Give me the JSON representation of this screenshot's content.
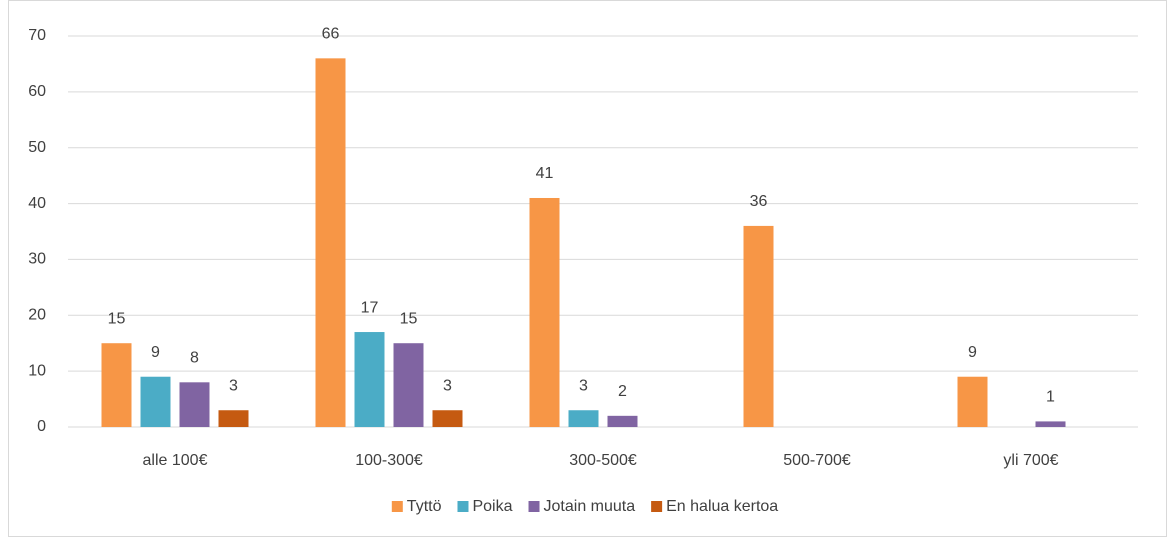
{
  "chart_data": {
    "type": "bar",
    "categories": [
      "alle 100€",
      "100-300€",
      "300-500€",
      "500-700€",
      "yli 700€"
    ],
    "series": [
      {
        "name": "Tyttö",
        "color": "#f79646",
        "values": [
          15,
          66,
          41,
          36,
          9
        ]
      },
      {
        "name": "Poika",
        "color": "#4bacc6",
        "values": [
          9,
          17,
          3,
          null,
          null
        ]
      },
      {
        "name": "Jotain muuta",
        "color": "#8064a2",
        "values": [
          8,
          15,
          2,
          null,
          1
        ]
      },
      {
        "name": "En halua kertoa",
        "color": "#c55a11",
        "values": [
          3,
          3,
          null,
          null,
          null
        ]
      }
    ],
    "ylim": [
      0,
      70
    ],
    "yticks": [
      0,
      10,
      20,
      30,
      40,
      50,
      60,
      70
    ],
    "grid": true,
    "legend": "bottom"
  }
}
